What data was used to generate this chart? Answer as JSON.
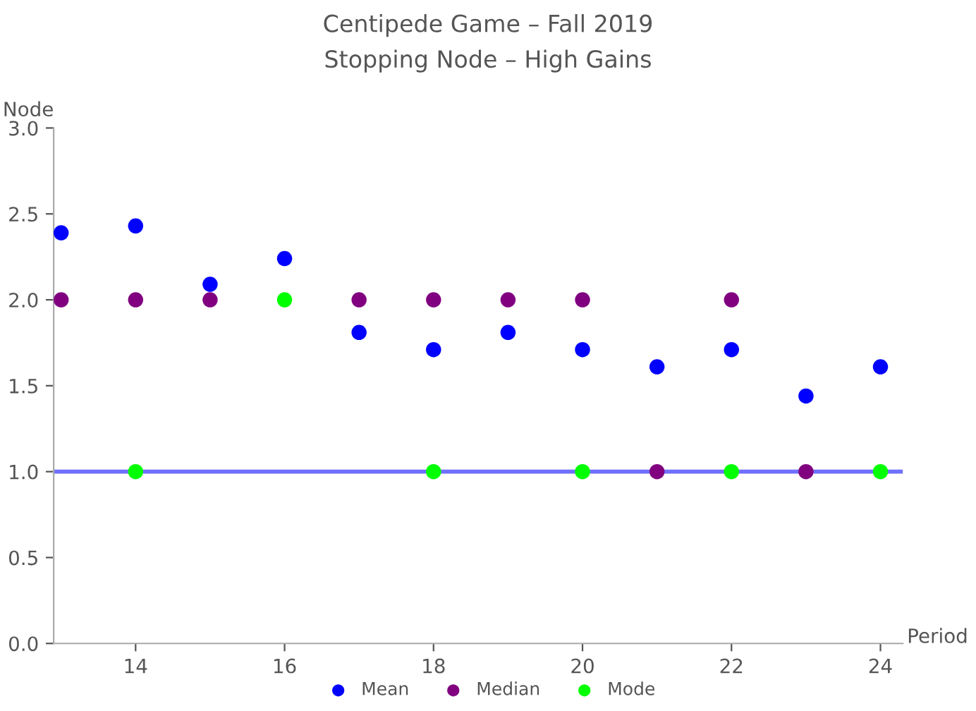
{
  "chart_data": {
    "type": "scatter",
    "title": "Centipede Game – Fall 2019",
    "subtitle": "Stopping Node – High Gains",
    "xlabel": "Period",
    "ylabel": "Node",
    "x": [
      13,
      14,
      15,
      16,
      17,
      18,
      19,
      20,
      21,
      22,
      23,
      24
    ],
    "series": [
      {
        "name": "Mean",
        "color": "#0000ff",
        "values": [
          2.39,
          2.43,
          2.09,
          2.24,
          1.81,
          1.71,
          1.81,
          1.71,
          1.61,
          1.71,
          1.44,
          1.61
        ]
      },
      {
        "name": "Median",
        "color": "#800080",
        "values": [
          2,
          2,
          2,
          null,
          2,
          2,
          2,
          2,
          1,
          2,
          1,
          null
        ]
      },
      {
        "name": "Mode",
        "color": "#00ff00",
        "values": [
          null,
          1,
          null,
          2,
          null,
          1,
          null,
          1,
          null,
          1,
          null,
          1
        ]
      }
    ],
    "ref_lines": [
      {
        "axis": "y",
        "value": 1,
        "label": null,
        "color": "#7070ff"
      }
    ],
    "xlim": [
      12.9,
      24.3
    ],
    "ylim": [
      0,
      3
    ],
    "xticks": [
      14,
      16,
      18,
      20,
      22,
      24
    ],
    "yticks": [
      {
        "value": 0,
        "label": "0.0"
      },
      {
        "value": 0.5,
        "label": "0.5"
      },
      {
        "value": 1,
        "label": "1.0"
      },
      {
        "value": 1.5,
        "label": "1.5"
      },
      {
        "value": 2,
        "label": "2.0"
      },
      {
        "value": 2.5,
        "label": "2.5"
      },
      {
        "value": 3,
        "label": "3.0"
      }
    ],
    "marker": "circle",
    "legend": "bottom",
    "grid": false
  }
}
